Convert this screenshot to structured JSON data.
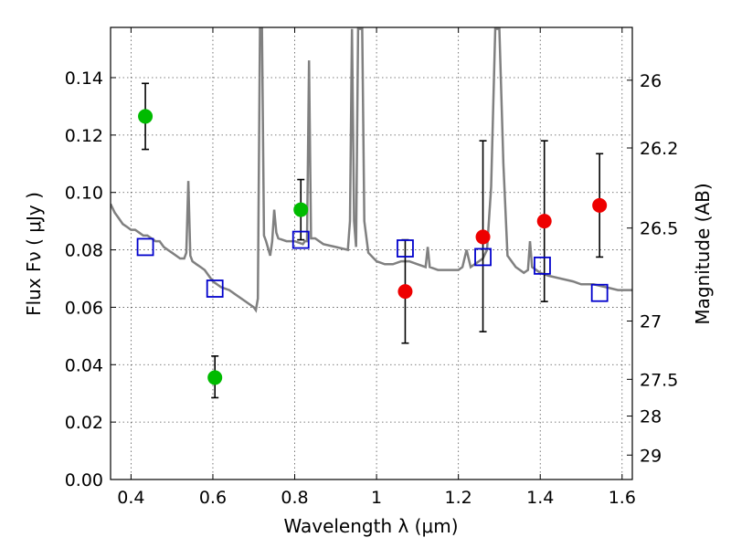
{
  "chart_data": {
    "type": "scatter",
    "title": "",
    "xlabel": "Wavelength  λ (μm)",
    "ylabel": "Flux  Fν  ( μJy )",
    "y2label": "Magnitude (AB)",
    "xlim": [
      0.35,
      1.625
    ],
    "ylim": [
      0.0,
      0.1575
    ],
    "grid": true,
    "legend": "none",
    "x_ticks": [
      {
        "value": 0.4,
        "label": "0.4"
      },
      {
        "value": 0.6,
        "label": "0.6"
      },
      {
        "value": 0.8,
        "label": "0.8"
      },
      {
        "value": 1.0,
        "label": "1"
      },
      {
        "value": 1.2,
        "label": "1.2"
      },
      {
        "value": 1.4,
        "label": "1.4"
      },
      {
        "value": 1.6,
        "label": "1.6"
      }
    ],
    "y_ticks": [
      {
        "value": 0.0,
        "label": "0.00"
      },
      {
        "value": 0.02,
        "label": "0.02"
      },
      {
        "value": 0.04,
        "label": "0.04"
      },
      {
        "value": 0.06,
        "label": "0.06"
      },
      {
        "value": 0.08,
        "label": "0.08"
      },
      {
        "value": 0.1,
        "label": "0.10"
      },
      {
        "value": 0.12,
        "label": "0.12"
      },
      {
        "value": 0.14,
        "label": "0.14"
      }
    ],
    "y2_ticks": [
      {
        "flux": 0.1391,
        "label": "26"
      },
      {
        "flux": 0.1155,
        "label": "26.2"
      },
      {
        "flux": 0.0876,
        "label": "26.5"
      },
      {
        "flux": 0.0552,
        "label": "27"
      },
      {
        "flux": 0.0349,
        "label": "27.5"
      },
      {
        "flux": 0.0221,
        "label": "28"
      },
      {
        "flux": 0.0085,
        "label": "29"
      }
    ],
    "series": [
      {
        "marker": "circle",
        "color": "#00bb00",
        "points": [
          {
            "x": 0.435,
            "y": 0.1265,
            "ylow": 0.115,
            "yhigh": 0.138
          },
          {
            "x": 0.605,
            "y": 0.0355,
            "ylow": 0.0285,
            "yhigh": 0.043
          },
          {
            "x": 0.815,
            "y": 0.094,
            "ylow": 0.0835,
            "yhigh": 0.1045
          }
        ]
      },
      {
        "marker": "circle",
        "color": "#ee0000",
        "points": [
          {
            "x": 1.07,
            "y": 0.0655,
            "ylow": 0.0475,
            "yhigh": 0.0835
          },
          {
            "x": 1.26,
            "y": 0.0845,
            "ylow": 0.0515,
            "yhigh": 0.118
          },
          {
            "x": 1.41,
            "y": 0.09,
            "ylow": 0.062,
            "yhigh": 0.118
          },
          {
            "x": 1.545,
            "y": 0.0955,
            "ylow": 0.0775,
            "yhigh": 0.1135
          }
        ]
      },
      {
        "marker": "square",
        "color": "#0000cc",
        "points": [
          {
            "x": 0.435,
            "y": 0.081
          },
          {
            "x": 0.605,
            "y": 0.0665
          },
          {
            "x": 0.815,
            "y": 0.0835
          },
          {
            "x": 1.07,
            "y": 0.0805
          },
          {
            "x": 1.26,
            "y": 0.0775
          },
          {
            "x": 1.405,
            "y": 0.0745
          },
          {
            "x": 1.545,
            "y": 0.065
          }
        ]
      },
      {
        "type": "line",
        "color": "#808080",
        "points": [
          [
            0.35,
            0.096
          ],
          [
            0.36,
            0.093
          ],
          [
            0.37,
            0.091
          ],
          [
            0.38,
            0.089
          ],
          [
            0.39,
            0.088
          ],
          [
            0.4,
            0.087
          ],
          [
            0.41,
            0.087
          ],
          [
            0.42,
            0.086
          ],
          [
            0.43,
            0.085
          ],
          [
            0.44,
            0.085
          ],
          [
            0.45,
            0.084
          ],
          [
            0.46,
            0.083
          ],
          [
            0.47,
            0.083
          ],
          [
            0.48,
            0.081
          ],
          [
            0.49,
            0.08
          ],
          [
            0.5,
            0.079
          ],
          [
            0.51,
            0.078
          ],
          [
            0.52,
            0.077
          ],
          [
            0.53,
            0.077
          ],
          [
            0.535,
            0.079
          ],
          [
            0.54,
            0.104
          ],
          [
            0.545,
            0.078
          ],
          [
            0.55,
            0.076
          ],
          [
            0.56,
            0.075
          ],
          [
            0.57,
            0.074
          ],
          [
            0.58,
            0.073
          ],
          [
            0.59,
            0.071
          ],
          [
            0.6,
            0.069
          ],
          [
            0.62,
            0.067
          ],
          [
            0.64,
            0.066
          ],
          [
            0.66,
            0.064
          ],
          [
            0.68,
            0.062
          ],
          [
            0.7,
            0.06
          ],
          [
            0.705,
            0.059
          ],
          [
            0.71,
            0.063
          ],
          [
            0.715,
            0.157
          ],
          [
            0.72,
            0.157
          ],
          [
            0.725,
            0.085
          ],
          [
            0.73,
            0.083
          ],
          [
            0.74,
            0.078
          ],
          [
            0.745,
            0.083
          ],
          [
            0.75,
            0.094
          ],
          [
            0.755,
            0.086
          ],
          [
            0.76,
            0.084
          ],
          [
            0.78,
            0.083
          ],
          [
            0.8,
            0.083
          ],
          [
            0.82,
            0.082
          ],
          [
            0.825,
            0.083
          ],
          [
            0.83,
            0.083
          ],
          [
            0.835,
            0.146
          ],
          [
            0.84,
            0.084
          ],
          [
            0.85,
            0.084
          ],
          [
            0.87,
            0.082
          ],
          [
            0.9,
            0.081
          ],
          [
            0.93,
            0.08
          ],
          [
            0.935,
            0.09
          ],
          [
            0.94,
            0.157
          ],
          [
            0.945,
            0.09
          ],
          [
            0.95,
            0.081
          ],
          [
            0.955,
            0.157
          ],
          [
            0.96,
            0.157
          ],
          [
            0.965,
            0.157
          ],
          [
            0.97,
            0.09
          ],
          [
            0.98,
            0.079
          ],
          [
            1.0,
            0.076
          ],
          [
            1.02,
            0.075
          ],
          [
            1.04,
            0.075
          ],
          [
            1.06,
            0.076
          ],
          [
            1.08,
            0.076
          ],
          [
            1.1,
            0.075
          ],
          [
            1.12,
            0.074
          ],
          [
            1.125,
            0.081
          ],
          [
            1.13,
            0.074
          ],
          [
            1.15,
            0.073
          ],
          [
            1.18,
            0.073
          ],
          [
            1.2,
            0.073
          ],
          [
            1.21,
            0.074
          ],
          [
            1.22,
            0.08
          ],
          [
            1.23,
            0.074
          ],
          [
            1.25,
            0.076
          ],
          [
            1.26,
            0.077
          ],
          [
            1.27,
            0.08
          ],
          [
            1.28,
            0.102
          ],
          [
            1.29,
            0.157
          ],
          [
            1.3,
            0.157
          ],
          [
            1.31,
            0.11
          ],
          [
            1.32,
            0.078
          ],
          [
            1.34,
            0.074
          ],
          [
            1.36,
            0.072
          ],
          [
            1.37,
            0.073
          ],
          [
            1.375,
            0.083
          ],
          [
            1.38,
            0.074
          ],
          [
            1.4,
            0.072
          ],
          [
            1.42,
            0.071
          ],
          [
            1.45,
            0.07
          ],
          [
            1.48,
            0.069
          ],
          [
            1.5,
            0.068
          ],
          [
            1.53,
            0.068
          ],
          [
            1.56,
            0.067
          ],
          [
            1.59,
            0.066
          ],
          [
            1.625,
            0.066
          ]
        ]
      }
    ]
  }
}
